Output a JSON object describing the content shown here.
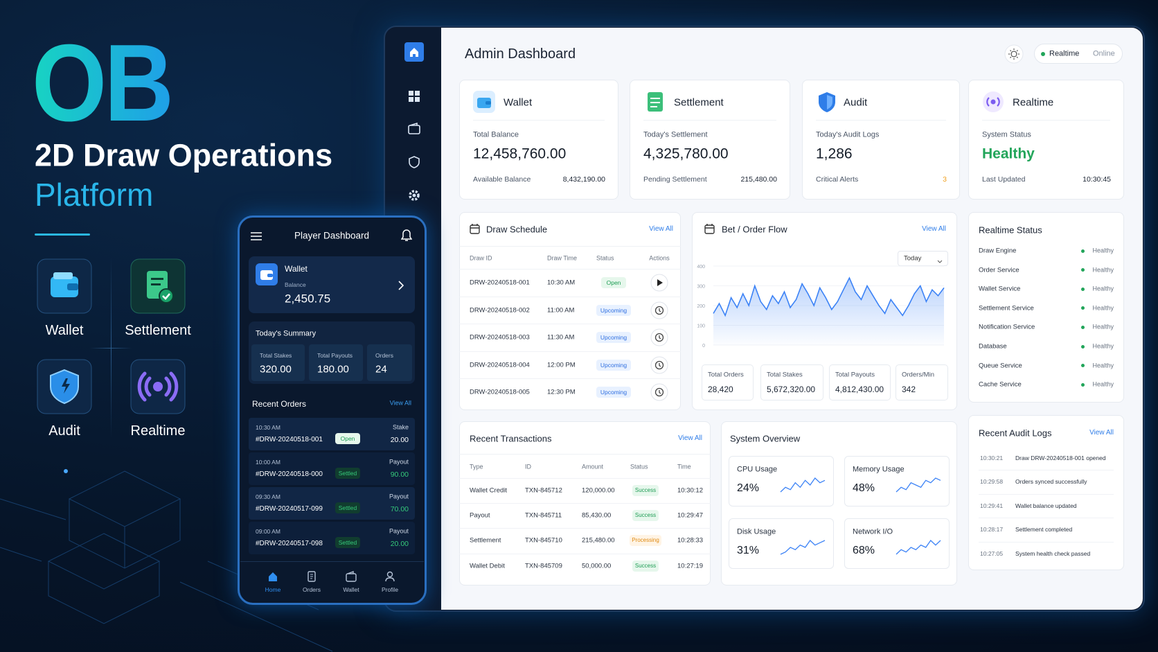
{
  "brand": {
    "logo": "OB",
    "title": "2D Draw Operations",
    "subtitle": "Platform"
  },
  "features": [
    "Wallet",
    "Settlement",
    "Audit",
    "Realtime"
  ],
  "mobile": {
    "title": "Player Dashboard",
    "wallet": {
      "label": "Wallet",
      "balance_label": "Balance",
      "balance": "2,450.75"
    },
    "summary": {
      "title": "Today's Summary",
      "items": [
        {
          "label": "Total Stakes",
          "value": "320.00"
        },
        {
          "label": "Total Payouts",
          "value": "180.00"
        },
        {
          "label": "Orders",
          "value": "24"
        }
      ]
    },
    "recent_orders": {
      "title": "Recent Orders",
      "view_all": "View All",
      "rows": [
        {
          "time": "10:30 AM",
          "id": "#DRW-20240518-001",
          "status": "Open",
          "kind": "Stake",
          "amount": "20.00"
        },
        {
          "time": "10:00 AM",
          "id": "#DRW-20240518-000",
          "status": "Settled",
          "kind": "Payout",
          "amount": "90.00"
        },
        {
          "time": "09:30 AM",
          "id": "#DRW-20240517-099",
          "status": "Settled",
          "kind": "Payout",
          "amount": "70.00"
        },
        {
          "time": "09:00 AM",
          "id": "#DRW-20240517-098",
          "status": "Settled",
          "kind": "Payout",
          "amount": "20.00"
        }
      ]
    },
    "nav": [
      "Home",
      "Orders",
      "Wallet",
      "Profile"
    ]
  },
  "admin": {
    "title": "Admin Dashboard",
    "mode": "Realtime",
    "state": "Online",
    "cards": [
      {
        "title": "Wallet",
        "label": "Total Balance",
        "value": "12,458,760.00",
        "sub_label": "Available Balance",
        "sub_value": "8,432,190.00"
      },
      {
        "title": "Settlement",
        "label": "Today's Settlement",
        "value": "4,325,780.00",
        "sub_label": "Pending Settlement",
        "sub_value": "215,480.00"
      },
      {
        "title": "Audit",
        "label": "Today's Audit Logs",
        "value": "1,286",
        "sub_label": "Critical Alerts",
        "sub_value": "3"
      },
      {
        "title": "Realtime",
        "label": "System Status",
        "value": "Healthy",
        "sub_label": "Last Updated",
        "sub_value": "10:30:45"
      }
    ],
    "draw_schedule": {
      "title": "Draw Schedule",
      "view_all": "View All",
      "columns": [
        "Draw ID",
        "Draw Time",
        "Status",
        "Actions"
      ],
      "rows": [
        [
          "DRW-20240518-001",
          "10:30 AM",
          "Open"
        ],
        [
          "DRW-20240518-002",
          "11:00 AM",
          "Upcoming"
        ],
        [
          "DRW-20240518-003",
          "11:30 AM",
          "Upcoming"
        ],
        [
          "DRW-20240518-004",
          "12:00 PM",
          "Upcoming"
        ],
        [
          "DRW-20240518-005",
          "12:30 PM",
          "Upcoming"
        ]
      ]
    },
    "order_flow_stats": [
      {
        "label": "Total Orders",
        "value": "28,420"
      },
      {
        "label": "Total Stakes",
        "value": "5,672,320.00"
      },
      {
        "label": "Total Payouts",
        "value": "4,812,430.00"
      },
      {
        "label": "Orders/Min",
        "value": "342"
      }
    ],
    "realtime_status": {
      "title": "Realtime Status",
      "rows": [
        {
          "name": "Draw Engine",
          "status": "Healthy"
        },
        {
          "name": "Order Service",
          "status": "Healthy"
        },
        {
          "name": "Wallet Service",
          "status": "Healthy"
        },
        {
          "name": "Settlement Service",
          "status": "Healthy"
        },
        {
          "name": "Notification Service",
          "status": "Healthy"
        },
        {
          "name": "Database",
          "status": "Healthy"
        },
        {
          "name": "Queue Service",
          "status": "Healthy"
        },
        {
          "name": "Cache Service",
          "status": "Healthy"
        }
      ]
    },
    "transactions": {
      "title": "Recent Transactions",
      "view_all": "View All",
      "columns": [
        "Type",
        "ID",
        "Amount",
        "Status",
        "Time"
      ],
      "rows": [
        [
          "Wallet Credit",
          "TXN-845712",
          "120,000.00",
          "Success",
          "10:30:12"
        ],
        [
          "Payout",
          "TXN-845711",
          "85,430.00",
          "Success",
          "10:29:47"
        ],
        [
          "Settlement",
          "TXN-845710",
          "215,480.00",
          "Processing",
          "10:28:33"
        ],
        [
          "Wallet Debit",
          "TXN-845709",
          "50,000.00",
          "Success",
          "10:27:19"
        ]
      ]
    },
    "system_overview": {
      "title": "System Overview",
      "metrics": [
        {
          "label": "CPU Usage",
          "value": "24%",
          "spark": [
            3,
            5,
            4,
            7,
            5,
            8,
            6,
            9,
            7,
            8
          ]
        },
        {
          "label": "Memory Usage",
          "value": "48%",
          "spark": [
            2,
            4,
            3,
            6,
            5,
            4,
            7,
            6,
            8,
            7
          ]
        },
        {
          "label": "Disk Usage",
          "value": "31%",
          "spark": [
            2,
            3,
            5,
            4,
            6,
            5,
            8,
            6,
            7,
            8
          ]
        },
        {
          "label": "Network I/O",
          "value": "68%",
          "spark": [
            2,
            4,
            3,
            5,
            4,
            6,
            5,
            8,
            6,
            8
          ]
        }
      ]
    },
    "audit_logs": {
      "title": "Recent Audit Logs",
      "view_all": "View All",
      "rows": [
        {
          "time": "10:30:21",
          "message": "Draw DRW-20240518-001 opened"
        },
        {
          "time": "10:29:58",
          "message": "Orders synced successfully"
        },
        {
          "time": "10:29:41",
          "message": "Wallet balance updated"
        },
        {
          "time": "10:28:17",
          "message": "Settlement completed"
        },
        {
          "time": "10:27:05",
          "message": "System health check passed"
        }
      ]
    }
  },
  "chart_data": {
    "type": "line",
    "title": "Bet / Order Flow",
    "view_all": "View All",
    "range": "Today",
    "color": "#3b82f6",
    "values": [
      160,
      210,
      150,
      240,
      190,
      260,
      200,
      300,
      220,
      180,
      250,
      210,
      270,
      190,
      230,
      310,
      260,
      200,
      290,
      240,
      180,
      220,
      280,
      340,
      270,
      230,
      300,
      250,
      200,
      160,
      230,
      190,
      150,
      200,
      260,
      300,
      220,
      280,
      250,
      290
    ],
    "ylim": [
      0,
      400
    ],
    "yticks": [
      0,
      100,
      200,
      300,
      400
    ],
    "grid": true
  }
}
